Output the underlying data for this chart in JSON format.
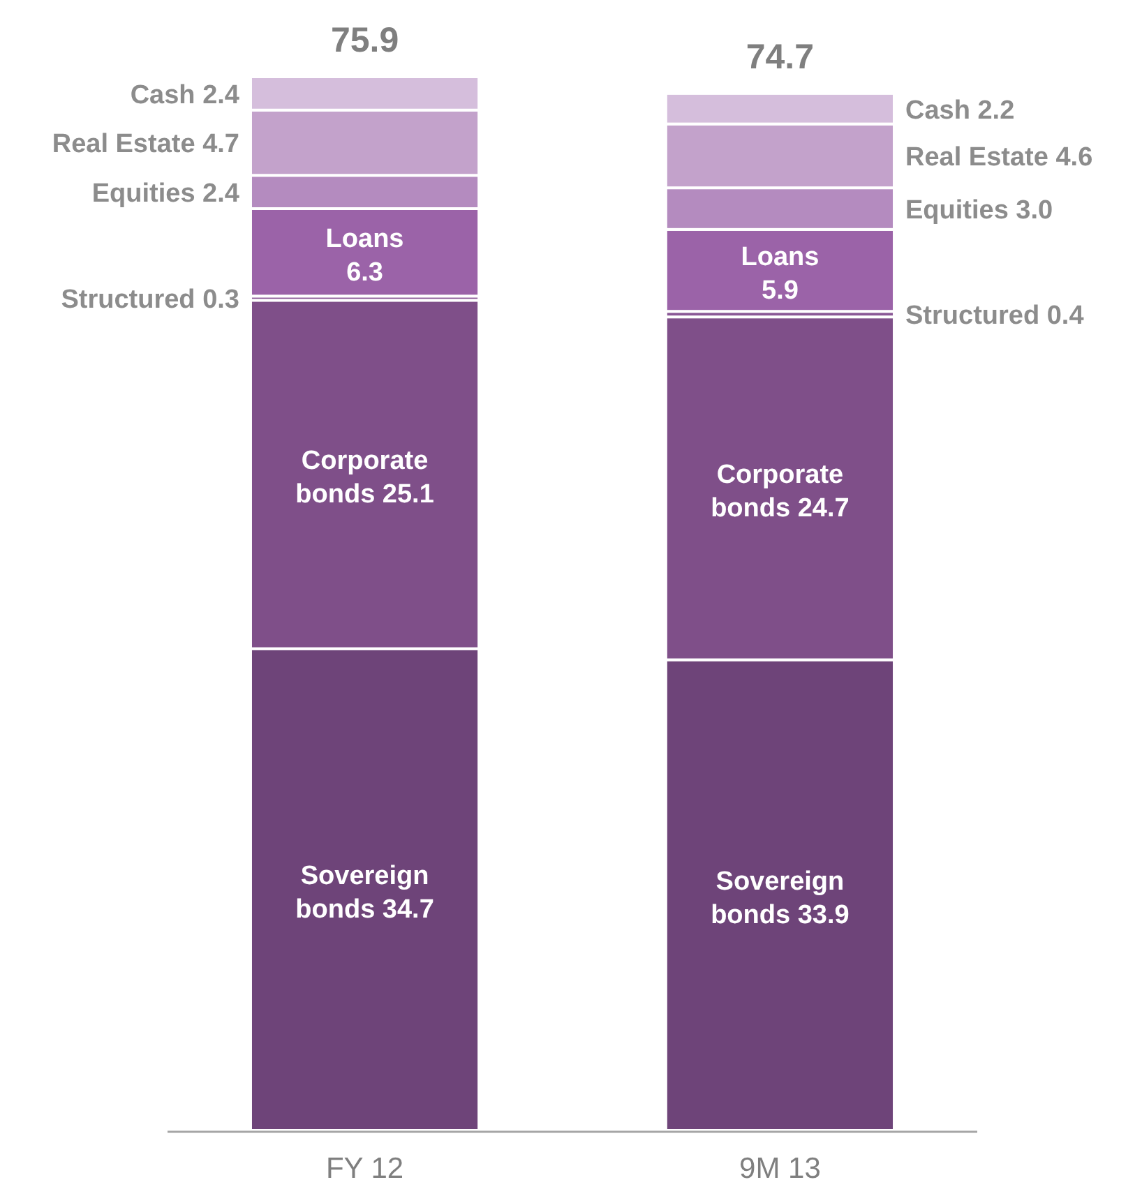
{
  "chart_data": {
    "type": "bar",
    "stacked": true,
    "categories": [
      "FY 12",
      "9M 13"
    ],
    "series": [
      {
        "name": "Sovereign bonds",
        "color": "#6e4479",
        "values": [
          34.7,
          33.9
        ],
        "value_labels": [
          "34.7",
          "33.9"
        ]
      },
      {
        "name": "Corporate bonds",
        "color": "#7f4f89",
        "values": [
          25.1,
          24.7
        ],
        "value_labels": [
          "25.1",
          "24.7"
        ]
      },
      {
        "name": "Structured",
        "color": "#8a5796",
        "values": [
          0.3,
          0.4
        ],
        "value_labels": [
          "0.3",
          "0.4"
        ]
      },
      {
        "name": "Loans",
        "color": "#9b63a8",
        "values": [
          6.3,
          5.9
        ],
        "value_labels": [
          "6.3",
          "5.9"
        ]
      },
      {
        "name": "Equities",
        "color": "#b48bbf",
        "values": [
          2.4,
          3.0
        ],
        "value_labels": [
          "2.4",
          "3.0"
        ]
      },
      {
        "name": "Real Estate",
        "color": "#c3a2cb",
        "values": [
          4.7,
          4.6
        ],
        "value_labels": [
          "4.7",
          "4.6"
        ]
      },
      {
        "name": "Cash",
        "color": "#d5bedc",
        "values": [
          2.4,
          2.2
        ],
        "value_labels": [
          "2.4",
          "2.2"
        ]
      }
    ],
    "totals": [
      "75.9",
      "74.7"
    ]
  }
}
